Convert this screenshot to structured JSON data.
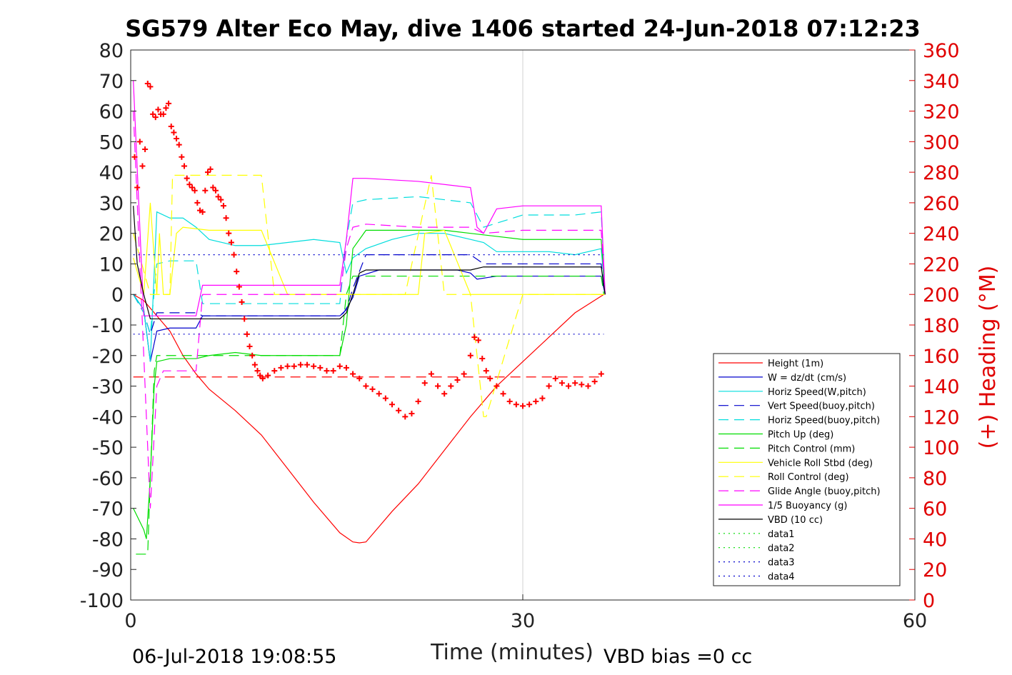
{
  "chart_data": {
    "type": "line",
    "title": "SG579 Alter Eco May, dive 1406 started 24-Jun-2018 07:12:23",
    "xlabel": "Time (minutes)",
    "ylabel_right": "(+) Heading (°M)",
    "xlim": [
      0,
      60
    ],
    "ylim": [
      -100,
      80
    ],
    "ylim_right": [
      0,
      360
    ],
    "x_ticks": [
      "0",
      "30",
      "60"
    ],
    "y_ticks": [
      "80",
      "70",
      "60",
      "50",
      "40",
      "30",
      "20",
      "10",
      "0",
      "-10",
      "-20",
      "-30",
      "-40",
      "-50",
      "-60",
      "-70",
      "-80",
      "-90",
      "-100"
    ],
    "y_ticks_right": [
      "360",
      "340",
      "320",
      "300",
      "280",
      "260",
      "240",
      "220",
      "200",
      "180",
      "160",
      "140",
      "120",
      "100",
      "80",
      "60",
      "40",
      "20",
      "0"
    ],
    "grid": "x-only",
    "legend_position": "lower-right",
    "footer_date": "06-Jul-2018 19:08:55",
    "footer_vbd": "VBD bias =0 cc",
    "series": [
      {
        "name": "Height (1m)",
        "color": "#ff0000",
        "style": "solid",
        "x": [
          0.2,
          1,
          2,
          3,
          4,
          5,
          6,
          8,
          10,
          12,
          14,
          16,
          17,
          17.5,
          18,
          19,
          20,
          22,
          24,
          26,
          28,
          30,
          32,
          34,
          36.2
        ],
        "y": [
          0,
          -2,
          -7,
          -12,
          -20,
          -26,
          -31,
          -38,
          -46,
          -57,
          -68,
          -78,
          -81,
          -81.3,
          -81,
          -76,
          -71,
          -62,
          -51,
          -40,
          -30,
          -22,
          -14,
          -6,
          0
        ]
      },
      {
        "name": "W = dz/dt (cm/s)",
        "color": "#0000cc",
        "style": "solid",
        "x": [
          0.2,
          1,
          1.5,
          2,
          3,
          5,
          5.5,
          8,
          10,
          12,
          14,
          16,
          16.3,
          17,
          17.5,
          19,
          22,
          25,
          26,
          26.5,
          28,
          30,
          32,
          34,
          36,
          36.3
        ],
        "y": [
          0,
          -5,
          -22,
          -12,
          -11,
          -11,
          -7,
          -7,
          -7,
          -7,
          -7,
          -7,
          -6,
          -1,
          6,
          8,
          8,
          8,
          7,
          5,
          6,
          6,
          6,
          6,
          6,
          0
        ]
      },
      {
        "name": "Horiz Speed(W,pitch)",
        "color": "#00dddd",
        "style": "solid",
        "x": [
          0.2,
          1,
          1.5,
          2,
          3,
          4,
          5,
          6,
          8,
          10,
          12,
          14,
          16,
          16.5,
          17,
          18,
          20,
          22,
          24,
          26,
          27,
          28,
          30,
          32,
          34,
          36,
          36.3
        ],
        "y": [
          0,
          -5,
          -22,
          27,
          25,
          25,
          22,
          18,
          16,
          16,
          17,
          18,
          17,
          7,
          12,
          15,
          18,
          20,
          20,
          18,
          17,
          14,
          14,
          14,
          13,
          15,
          0
        ]
      },
      {
        "name": "Vert Speed(buoy,pitch)",
        "color": "#0000cc",
        "style": "dashed",
        "x": [
          0.2,
          1,
          1.5,
          2,
          3,
          5,
          5.5,
          8,
          10,
          12,
          14,
          16,
          16.5,
          17,
          18,
          22,
          26,
          27,
          30,
          34,
          36,
          36.3
        ],
        "y": [
          0,
          -6,
          -13,
          -6,
          -6,
          -6,
          -7,
          -7,
          -7,
          -7,
          -7,
          -7,
          -5,
          2,
          13,
          13,
          13,
          10,
          10,
          10,
          10,
          0
        ]
      },
      {
        "name": "Horiz Speed(buoy,pitch)",
        "color": "#00dddd",
        "style": "dashed",
        "x": [
          0.2,
          1,
          1.5,
          2,
          3,
          5,
          5.5,
          8,
          10,
          12,
          14,
          16,
          16.5,
          17,
          18,
          22,
          26,
          27,
          30,
          34,
          36,
          36.3
        ],
        "y": [
          0,
          -6,
          -13,
          10,
          11,
          11,
          -3,
          -3,
          -3,
          -3,
          -3,
          -3,
          18,
          30,
          31,
          32,
          30,
          22,
          26,
          26,
          27,
          0
        ]
      },
      {
        "name": "Pitch Up (deg)",
        "color": "#00dd00",
        "style": "solid",
        "x": [
          0.2,
          1,
          1.2,
          1.5,
          1.8,
          2,
          3,
          5,
          6,
          8,
          10,
          12,
          14,
          16,
          16.5,
          17,
          18,
          20,
          22,
          24,
          26,
          28,
          30,
          32,
          34,
          36,
          36.3
        ],
        "y": [
          -70,
          -77,
          -80,
          -60,
          -30,
          -22,
          -21,
          -21,
          -20,
          -19,
          -20,
          -20,
          -20,
          -20,
          -10,
          15,
          21,
          21,
          21,
          21,
          20,
          19,
          18,
          18,
          18,
          18,
          0
        ]
      },
      {
        "name": "Pitch Control (mm)",
        "color": "#00dd00",
        "style": "dashed",
        "x": [
          0.4,
          1.3,
          1.5,
          1.8,
          2,
          6,
          10,
          14,
          16,
          16.5,
          17,
          18,
          22,
          26,
          30,
          34,
          36,
          36.2
        ],
        "y": [
          -85,
          -85,
          -60,
          -25,
          -20,
          -20,
          -20,
          -20,
          -20,
          0,
          6,
          6,
          6,
          6,
          6,
          6,
          6,
          0
        ]
      },
      {
        "name": "Vehicle Roll Stbd (deg)",
        "color": "#ffff00",
        "style": "solid",
        "x": [
          0.2,
          1,
          1.5,
          2,
          2.2,
          2.5,
          3,
          3.5,
          4,
          6,
          8,
          10,
          12,
          14,
          16,
          17,
          18,
          20,
          22,
          22.5,
          24,
          26,
          26.5,
          27,
          28,
          30,
          32,
          34,
          36,
          36.3
        ],
        "y": [
          12,
          0,
          30,
          0,
          20,
          0,
          0,
          20,
          22,
          21,
          21,
          21,
          0,
          0,
          0,
          0,
          0,
          0,
          0,
          20,
          21,
          0,
          0,
          0,
          0,
          0,
          0,
          0,
          0,
          0
        ]
      },
      {
        "name": "Roll Control (deg)",
        "color": "#ffff00",
        "style": "dashed",
        "x": [
          0.2,
          1.5,
          3,
          3.2,
          5,
          6,
          8,
          10,
          11,
          14,
          16,
          17,
          19,
          21,
          23,
          24,
          26,
          27,
          27.2,
          30,
          33,
          36
        ],
        "y": [
          20,
          0,
          0,
          39,
          39,
          39,
          39,
          39,
          0,
          0,
          0,
          0,
          0,
          0,
          39,
          0,
          0,
          -40,
          -40,
          0,
          0,
          0
        ]
      },
      {
        "name": "Glide Angle (buoy,pitch)",
        "color": "#ff00ff",
        "style": "dashed",
        "x": [
          0.2,
          1,
          1.5,
          2,
          2.5,
          3,
          5,
          5.5,
          8,
          10,
          12,
          14,
          16,
          16.5,
          17,
          18,
          22,
          26,
          27,
          30,
          34,
          36,
          36.3
        ],
        "y": [
          60,
          -20,
          -70,
          -30,
          -25,
          -25,
          -25,
          0,
          0,
          0,
          0,
          0,
          0,
          15,
          22,
          23,
          22,
          22,
          20,
          21,
          21,
          21,
          0
        ]
      },
      {
        "name": "1/5 Buoyancy (g)",
        "color": "#ff00ff",
        "style": "solid",
        "x": [
          0.2,
          1,
          1.5,
          2,
          3,
          5,
          5.5,
          8,
          10,
          12,
          14,
          16,
          16.5,
          17,
          18,
          22,
          26,
          26.5,
          27,
          28,
          30,
          34,
          36,
          36.3
        ],
        "y": [
          70,
          -7,
          -7,
          -7,
          -7,
          -7,
          3,
          3,
          3,
          3,
          3,
          3,
          18,
          38,
          38,
          37,
          35,
          22,
          20,
          28,
          29,
          29,
          29,
          0
        ]
      },
      {
        "name": "VBD (10 cc)",
        "color": "#000000",
        "style": "solid",
        "x": [
          0.2,
          0.5,
          1,
          1.5,
          2,
          3,
          5,
          6,
          8,
          10,
          12,
          14,
          16,
          16.5,
          17,
          17.5,
          18,
          22,
          26,
          27,
          30,
          34,
          36,
          36.3
        ],
        "y": [
          29,
          10,
          0,
          -8,
          -8,
          -8,
          -8,
          -8,
          -8,
          -8,
          -8,
          -8,
          -8,
          -6,
          0,
          7,
          8,
          8,
          8,
          9,
          9,
          9,
          9,
          0
        ]
      },
      {
        "name": "data1",
        "color": "#00dd00",
        "style": "dotted",
        "x": [],
        "y": []
      },
      {
        "name": "data2",
        "color": "#00dd00",
        "style": "dotted",
        "x": [],
        "y": []
      },
      {
        "name": "data3",
        "color": "#0000cc",
        "style": "dotted",
        "x": [
          0.2,
          36.2
        ],
        "y": [
          13,
          13
        ]
      },
      {
        "name": "data4",
        "color": "#0000cc",
        "style": "dotted",
        "x": [
          0.2,
          36.2
        ],
        "y": [
          -13,
          -13
        ]
      }
    ],
    "reference_lines": [
      {
        "color": "#ff0000",
        "style": "dashed",
        "x": [
          0.2,
          36.2
        ],
        "y": [
          -27,
          -27
        ]
      }
    ],
    "heading_points": {
      "axis": "right",
      "color": "#ff0000",
      "marker": "+",
      "x": [
        0.3,
        0.5,
        0.7,
        0.9,
        1.1,
        1.3,
        1.5,
        1.7,
        1.9,
        2.1,
        2.3,
        2.5,
        2.7,
        2.9,
        3.1,
        3.3,
        3.5,
        3.7,
        3.9,
        4.1,
        4.3,
        4.5,
        4.7,
        4.9,
        5.1,
        5.3,
        5.5,
        5.7,
        5.9,
        6.1,
        6.3,
        6.5,
        6.7,
        6.9,
        7.1,
        7.3,
        7.5,
        7.7,
        7.9,
        8.1,
        8.3,
        8.5,
        8.7,
        8.9,
        9.1,
        9.3,
        9.5,
        9.7,
        9.9,
        10.1,
        10.5,
        11,
        11.5,
        12,
        12.5,
        13,
        13.5,
        14,
        14.5,
        15,
        15.5,
        16,
        16.5,
        17,
        17.5,
        18,
        18.5,
        19,
        19.5,
        20,
        20.5,
        21,
        21.5,
        22,
        22.5,
        23,
        23.5,
        24,
        24.5,
        25,
        25.5,
        26,
        26.3,
        26.6,
        26.9,
        27.2,
        27.5,
        28,
        28.5,
        29,
        29.5,
        30,
        30.5,
        31,
        31.5,
        32,
        32.5,
        33,
        33.5,
        34,
        34.5,
        35,
        35.5,
        36
      ],
      "y": [
        290,
        270,
        300,
        284,
        295,
        338,
        336,
        318,
        316,
        321,
        318,
        318,
        322,
        325,
        310,
        306,
        302,
        298,
        290,
        284,
        276,
        272,
        270,
        268,
        260,
        255,
        254,
        268,
        280,
        282,
        270,
        268,
        264,
        262,
        258,
        250,
        240,
        234,
        226,
        215,
        205,
        195,
        184,
        174,
        166,
        160,
        154,
        150,
        147,
        145,
        147,
        150,
        152,
        153,
        153,
        154,
        154,
        153,
        152,
        150,
        150,
        153,
        152,
        148,
        145,
        140,
        138,
        135,
        132,
        128,
        124,
        120,
        122,
        130,
        142,
        148,
        140,
        135,
        140,
        144,
        148,
        160,
        172,
        170,
        158,
        150,
        145,
        140,
        135,
        130,
        128,
        127,
        128,
        130,
        132,
        140,
        145,
        142,
        140,
        142,
        141,
        140,
        143,
        148
      ]
    }
  }
}
